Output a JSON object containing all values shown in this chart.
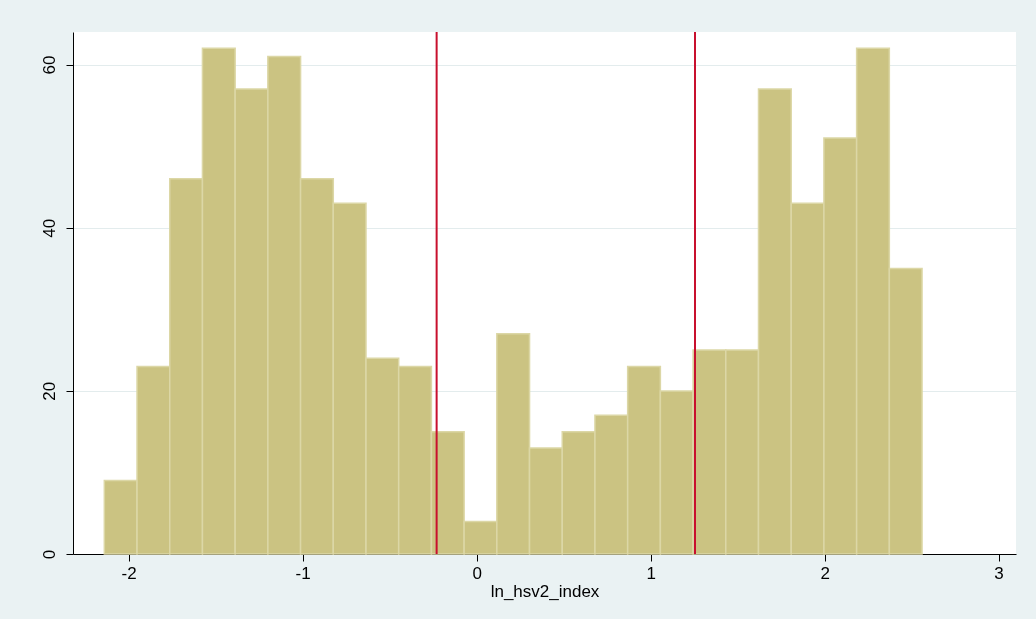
{
  "chart_data": {
    "type": "histogram",
    "xlabel": "ln_hsv2_index",
    "bins": [
      -2.14,
      -1.952,
      -1.764,
      -1.576,
      -1.388,
      -1.2,
      -1.012,
      -0.824,
      -0.636,
      -0.448,
      -0.26,
      -0.072,
      0.116,
      0.304,
      0.492,
      0.68,
      0.868,
      1.056,
      1.244,
      1.432,
      1.62,
      1.808,
      1.996,
      2.184,
      2.372,
      2.56
    ],
    "values": [
      9,
      23,
      46,
      62,
      57,
      61,
      46,
      43,
      24,
      23,
      15,
      4,
      27,
      13,
      15,
      17,
      23,
      20,
      25,
      25,
      57,
      43,
      51,
      62,
      35
    ],
    "color": "#cbc382",
    "xlim": [
      -2.32,
      3.1
    ],
    "xticks": [
      -2,
      -1,
      0,
      1,
      2,
      3
    ],
    "ylim": [
      0,
      64
    ],
    "yticks": [
      0,
      20,
      40,
      60
    ],
    "grid": "y",
    "ref_lines": [
      {
        "axis": "x",
        "value": -0.23,
        "color": "#c8102e"
      },
      {
        "axis": "x",
        "value": 1.255,
        "color": "#c8102e"
      }
    ]
  }
}
